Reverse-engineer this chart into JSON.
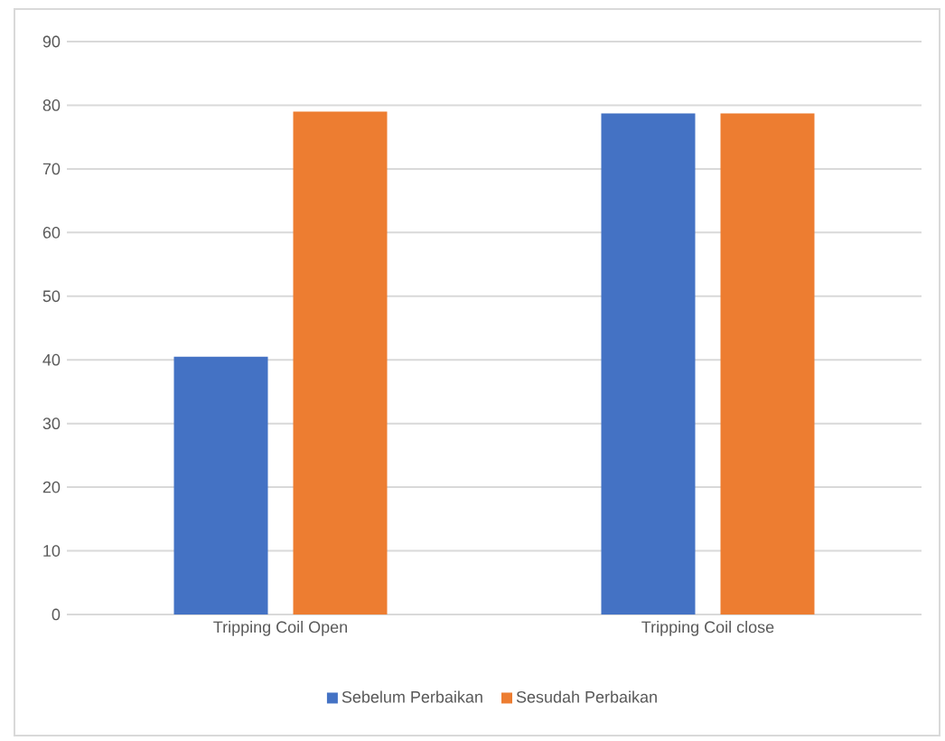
{
  "chart_data": {
    "type": "bar",
    "categories": [
      "Tripping Coil Open",
      "Tripping Coil close"
    ],
    "series": [
      {
        "name": "Sebelum Perbaikan",
        "color": "#4472c4",
        "values": [
          40.5,
          78.7
        ]
      },
      {
        "name": "Sesudah Perbaikan",
        "color": "#ed7d31",
        "values": [
          79,
          78.7
        ]
      }
    ],
    "ylim": [
      0,
      90
    ],
    "yticks": [
      0,
      10,
      20,
      30,
      40,
      50,
      60,
      70,
      80,
      90
    ],
    "grid": "y",
    "legend": "bottom"
  }
}
